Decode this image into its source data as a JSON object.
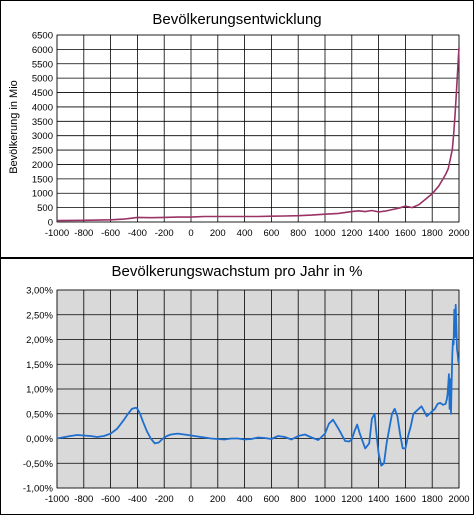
{
  "chart_data": [
    {
      "type": "line",
      "title": "Bevölkerungsentwicklung",
      "xlabel": "",
      "ylabel": "Bevölkerung in Mio",
      "xlim": [
        -1000,
        2000
      ],
      "ylim": [
        0,
        6500
      ],
      "x_ticks": [
        "-1000",
        "-800",
        "-600",
        "-400",
        "-200",
        "0",
        "200",
        "400",
        "600",
        "800",
        "1000",
        "1200",
        "1400",
        "1600",
        "1800",
        "2000"
      ],
      "y_ticks": [
        "0",
        "500",
        "1000",
        "1500",
        "2000",
        "2500",
        "3000",
        "3500",
        "4000",
        "4500",
        "5000",
        "5500",
        "6000",
        "6500"
      ],
      "grid": true,
      "plot_background": "#ffffff",
      "line_color": "#993366",
      "series": [
        {
          "x": [
            -1000,
            -900,
            -800,
            -700,
            -600,
            -500,
            -450,
            -400,
            -300,
            -200,
            -100,
            0,
            100,
            200,
            300,
            400,
            500,
            600,
            700,
            800,
            900,
            1000,
            1100,
            1200,
            1250,
            1300,
            1350,
            1400,
            1450,
            1500,
            1550,
            1600,
            1650,
            1700,
            1750,
            1800,
            1850,
            1900,
            1920,
            1940,
            1950,
            1960,
            1970,
            1980,
            1990,
            2000
          ],
          "y": [
            50,
            55,
            60,
            65,
            75,
            100,
            130,
            160,
            150,
            160,
            170,
            170,
            190,
            190,
            190,
            190,
            190,
            200,
            210,
            220,
            240,
            270,
            300,
            360,
            390,
            360,
            400,
            350,
            380,
            430,
            480,
            550,
            500,
            600,
            790,
            980,
            1260,
            1650,
            1860,
            2300,
            2520,
            3020,
            3700,
            4440,
            5300,
            6070
          ]
        }
      ]
    },
    {
      "type": "line",
      "title": "Bevölkerungswachstum pro Jahr in %",
      "xlabel": "",
      "ylabel": "",
      "xlim": [
        -1000,
        2000
      ],
      "ylim": [
        -1.0,
        3.0
      ],
      "x_ticks": [
        "-1000",
        "-800",
        "-600",
        "-400",
        "-200",
        "0",
        "200",
        "400",
        "600",
        "800",
        "1000",
        "1200",
        "1400",
        "1600",
        "1800",
        "2000"
      ],
      "y_ticks": [
        "-1,00%",
        "-0,50%",
        "0,00%",
        "0,50%",
        "1,00%",
        "1,50%",
        "2,00%",
        "2,50%",
        "3,00%"
      ],
      "grid": true,
      "plot_background": "#d9d9d9",
      "line_color": "#1f6fcf",
      "series": [
        {
          "x": [
            -1000,
            -960,
            -900,
            -850,
            -800,
            -750,
            -700,
            -650,
            -600,
            -550,
            -500,
            -470,
            -440,
            -410,
            -400,
            -380,
            -360,
            -330,
            -300,
            -270,
            -240,
            -210,
            -180,
            -150,
            -100,
            -50,
            0,
            50,
            100,
            150,
            200,
            250,
            300,
            350,
            400,
            450,
            500,
            550,
            600,
            650,
            700,
            750,
            800,
            850,
            900,
            950,
            1000,
            1030,
            1060,
            1100,
            1150,
            1180,
            1200,
            1220,
            1240,
            1260,
            1300,
            1330,
            1350,
            1370,
            1380,
            1400,
            1420,
            1440,
            1460,
            1500,
            1520,
            1540,
            1560,
            1580,
            1600,
            1620,
            1640,
            1660,
            1700,
            1720,
            1740,
            1760,
            1780,
            1800,
            1820,
            1840,
            1860,
            1880,
            1900,
            1910,
            1915,
            1920,
            1925,
            1930,
            1935,
            1940,
            1945,
            1950,
            1955,
            1960,
            1965,
            1970,
            1975,
            1980,
            1985,
            1990,
            1995,
            2000
          ],
          "y": [
            0.0,
            0.02,
            0.05,
            0.07,
            0.06,
            0.05,
            0.03,
            0.05,
            0.1,
            0.2,
            0.38,
            0.5,
            0.6,
            0.62,
            0.6,
            0.5,
            0.35,
            0.15,
            0.0,
            -0.1,
            -0.08,
            0.0,
            0.05,
            0.08,
            0.1,
            0.08,
            0.06,
            0.04,
            0.02,
            0.0,
            -0.01,
            -0.02,
            0.0,
            0.0,
            -0.02,
            -0.01,
            0.02,
            0.01,
            -0.01,
            0.05,
            0.03,
            -0.02,
            0.05,
            0.08,
            0.02,
            -0.03,
            0.1,
            0.3,
            0.38,
            0.2,
            -0.05,
            -0.06,
            -0.02,
            0.15,
            0.28,
            0.1,
            -0.2,
            -0.1,
            0.4,
            0.5,
            0.2,
            -0.3,
            -0.55,
            -0.5,
            -0.1,
            0.5,
            0.6,
            0.45,
            0.1,
            -0.2,
            -0.2,
            0.05,
            0.25,
            0.5,
            0.6,
            0.65,
            0.55,
            0.45,
            0.5,
            0.55,
            0.6,
            0.7,
            0.72,
            0.68,
            0.7,
            0.8,
            0.9,
            1.1,
            1.3,
            0.6,
            1.2,
            0.5,
            1.1,
            1.7,
            2.0,
            1.9,
            2.6,
            2.05,
            2.7,
            2.3,
            1.8,
            1.7,
            1.55,
            1.55
          ]
        }
      ]
    }
  ]
}
